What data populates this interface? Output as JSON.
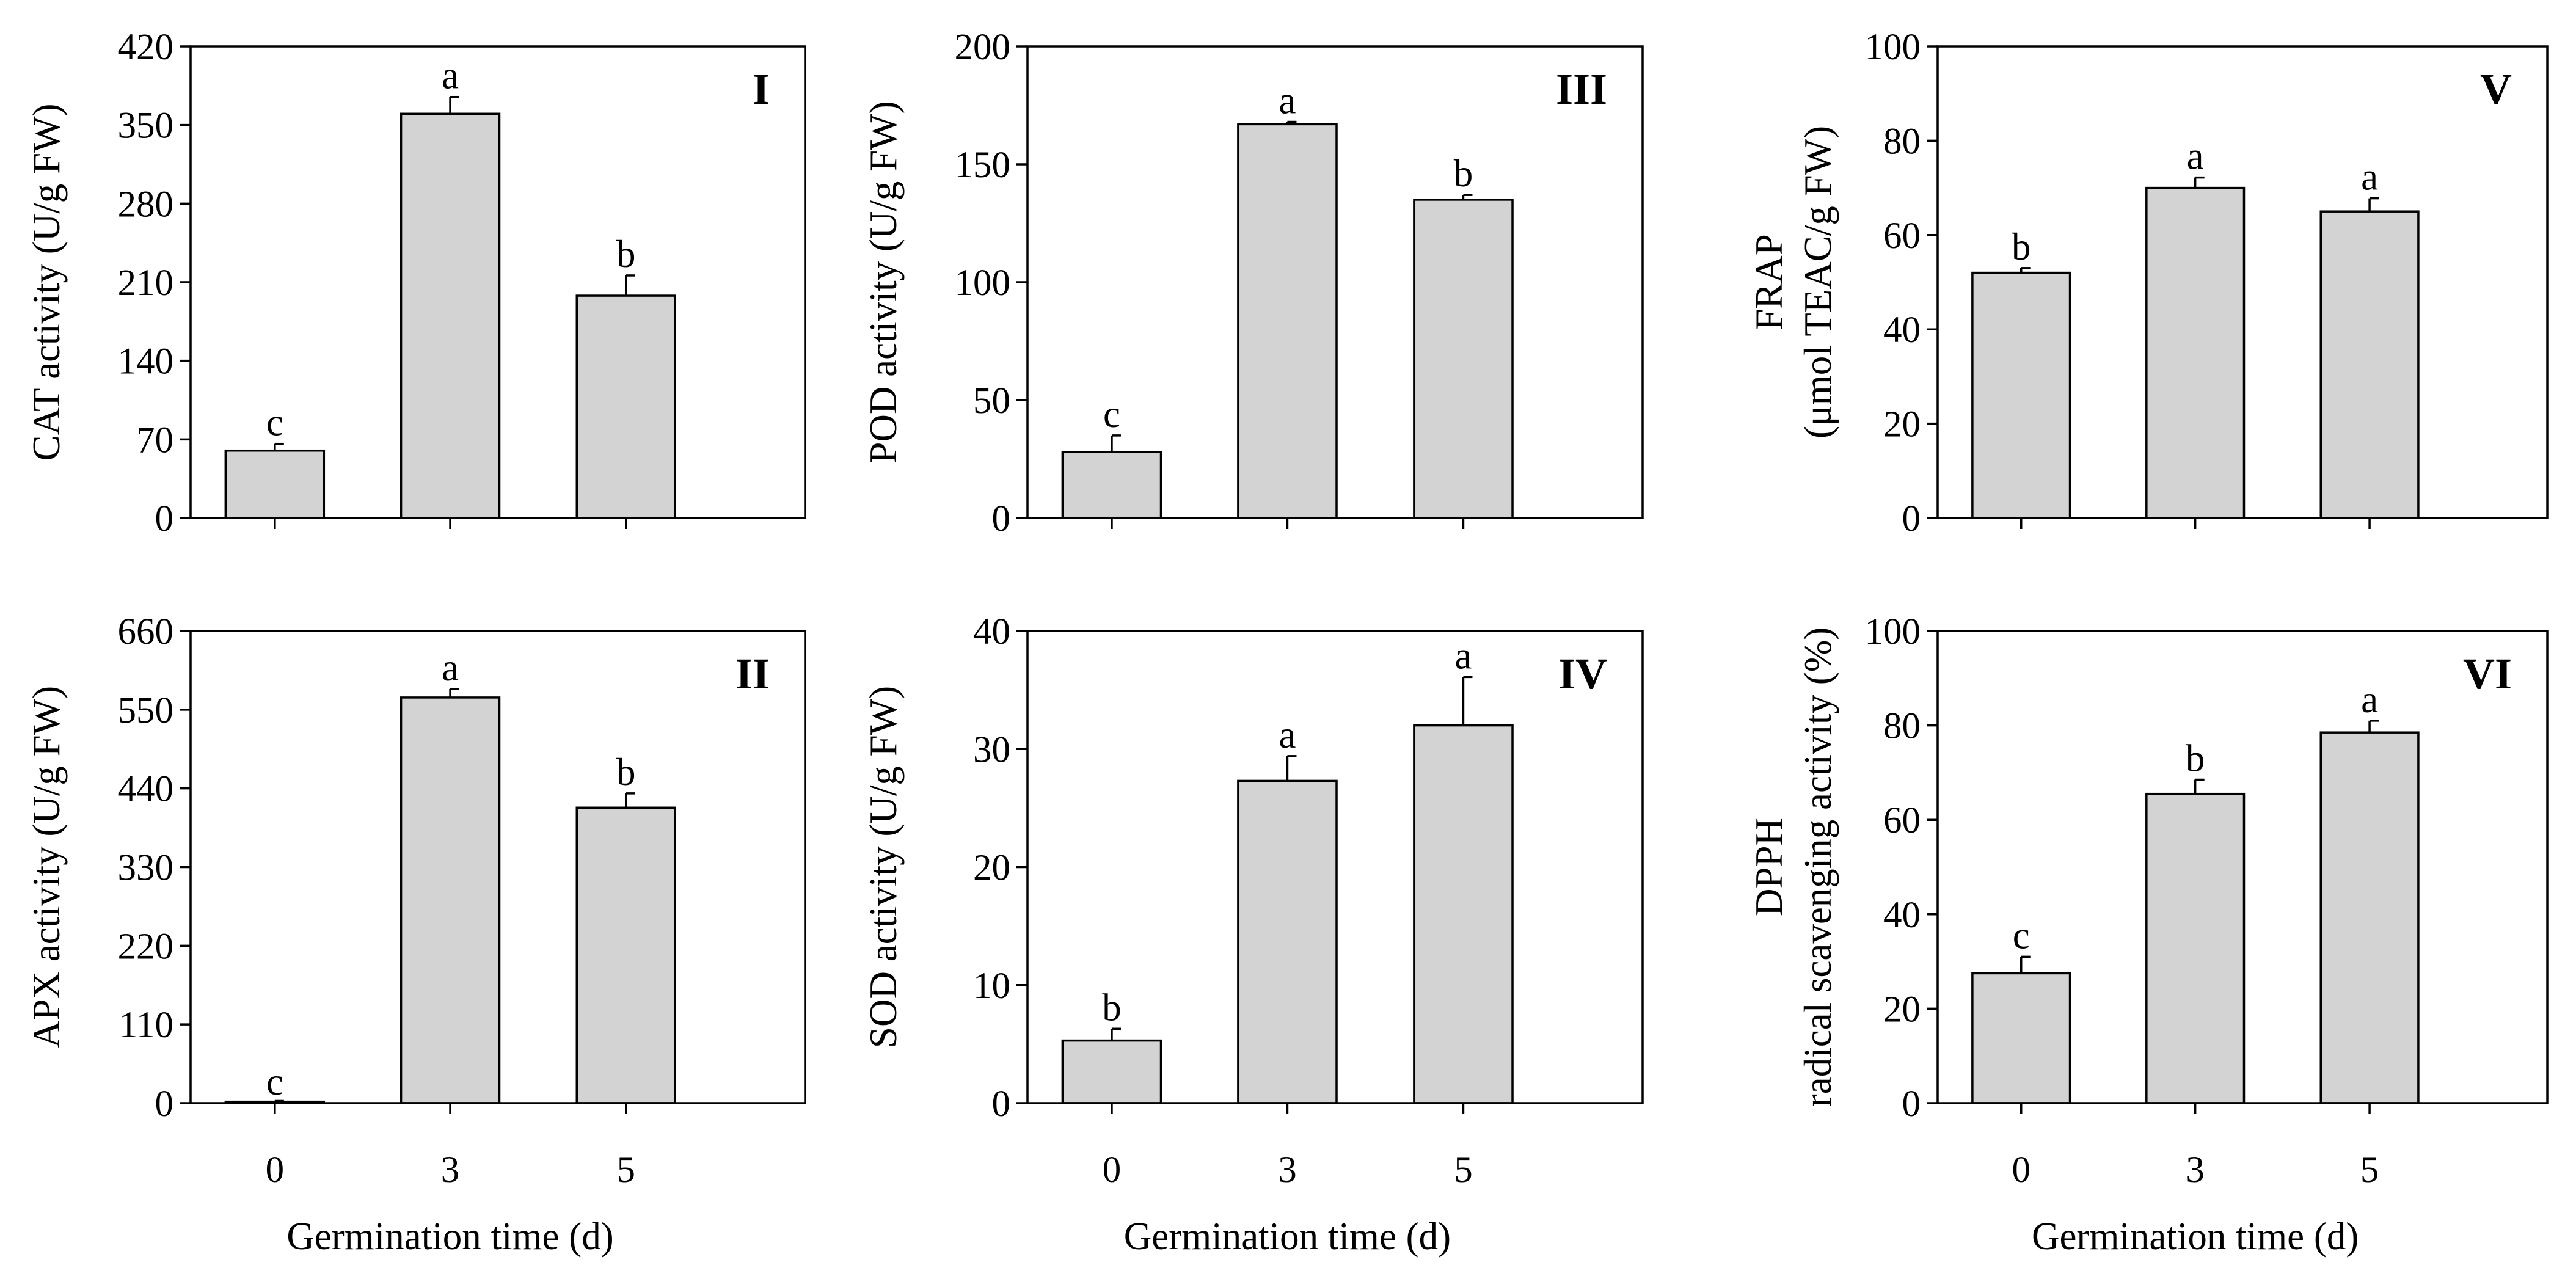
{
  "chart_data": [
    {
      "type": "bar",
      "panel": "I",
      "ylabel_lines": [
        "CAT activity (U/g FW)"
      ],
      "xlabel": "",
      "categories": [
        "0",
        "3",
        "5"
      ],
      "values": [
        60,
        360,
        198
      ],
      "errors": [
        6,
        15,
        18
      ],
      "letters": [
        "c",
        "a",
        "b"
      ],
      "ylim": [
        0,
        420
      ],
      "yticks": [
        "0",
        "70",
        "140",
        "210",
        "280",
        "350",
        "420"
      ]
    },
    {
      "type": "bar",
      "panel": "II",
      "ylabel_lines": [
        "APX activity (U/g FW)"
      ],
      "xlabel": "Germination time (d)",
      "categories": [
        "0",
        "3",
        "5"
      ],
      "values": [
        2,
        567,
        413
      ],
      "errors": [
        1,
        12,
        20
      ],
      "letters": [
        "c",
        "a",
        "b"
      ],
      "ylim": [
        0,
        660
      ],
      "yticks": [
        "0",
        "110",
        "220",
        "330",
        "440",
        "550",
        "660"
      ]
    },
    {
      "type": "bar",
      "panel": "III",
      "ylabel_lines": [
        "POD activity (U/g FW)"
      ],
      "xlabel": "",
      "categories": [
        "0",
        "3",
        "5"
      ],
      "values": [
        28,
        167,
        135
      ],
      "errors": [
        7,
        1,
        2
      ],
      "letters": [
        "c",
        "a",
        "b"
      ],
      "ylim": [
        0,
        200
      ],
      "yticks": [
        "0",
        "50",
        "100",
        "150",
        "200"
      ]
    },
    {
      "type": "bar",
      "panel": "IV",
      "ylabel_lines": [
        "SOD activity (U/g FW)"
      ],
      "xlabel": "Germination time (d)",
      "categories": [
        "0",
        "3",
        "5"
      ],
      "values": [
        5.3,
        27.3,
        32
      ],
      "errors": [
        1,
        2.1,
        4.1
      ],
      "letters": [
        "b",
        "a",
        "a"
      ],
      "ylim": [
        0,
        40
      ],
      "yticks": [
        "0",
        "10",
        "20",
        "30",
        "40"
      ]
    },
    {
      "type": "bar",
      "panel": "V",
      "ylabel_lines": [
        "FRAP",
        "(μmol TEAC/g FW)"
      ],
      "xlabel": "",
      "categories": [
        "0",
        "3",
        "5"
      ],
      "values": [
        52,
        70,
        65
      ],
      "errors": [
        1,
        2.2,
        2.8
      ],
      "letters": [
        "b",
        "a",
        "a"
      ],
      "ylim": [
        0,
        100
      ],
      "yticks": [
        "0",
        "20",
        "40",
        "60",
        "80",
        "100"
      ]
    },
    {
      "type": "bar",
      "panel": "VI",
      "ylabel_lines": [
        "DPPH",
        "radical scavenging activity (%)"
      ],
      "xlabel": "Germination time (d)",
      "categories": [
        "0",
        "3",
        "5"
      ],
      "values": [
        27.5,
        65.5,
        78.5
      ],
      "errors": [
        3.5,
        3,
        2.5
      ],
      "letters": [
        "c",
        "b",
        "a"
      ],
      "ylim": [
        0,
        100
      ],
      "yticks": [
        "0",
        "20",
        "40",
        "60",
        "80",
        "100"
      ]
    }
  ],
  "colors": {
    "bar_fill": "#d3d3d3",
    "stroke": "#000000",
    "background": "#ffffff"
  }
}
